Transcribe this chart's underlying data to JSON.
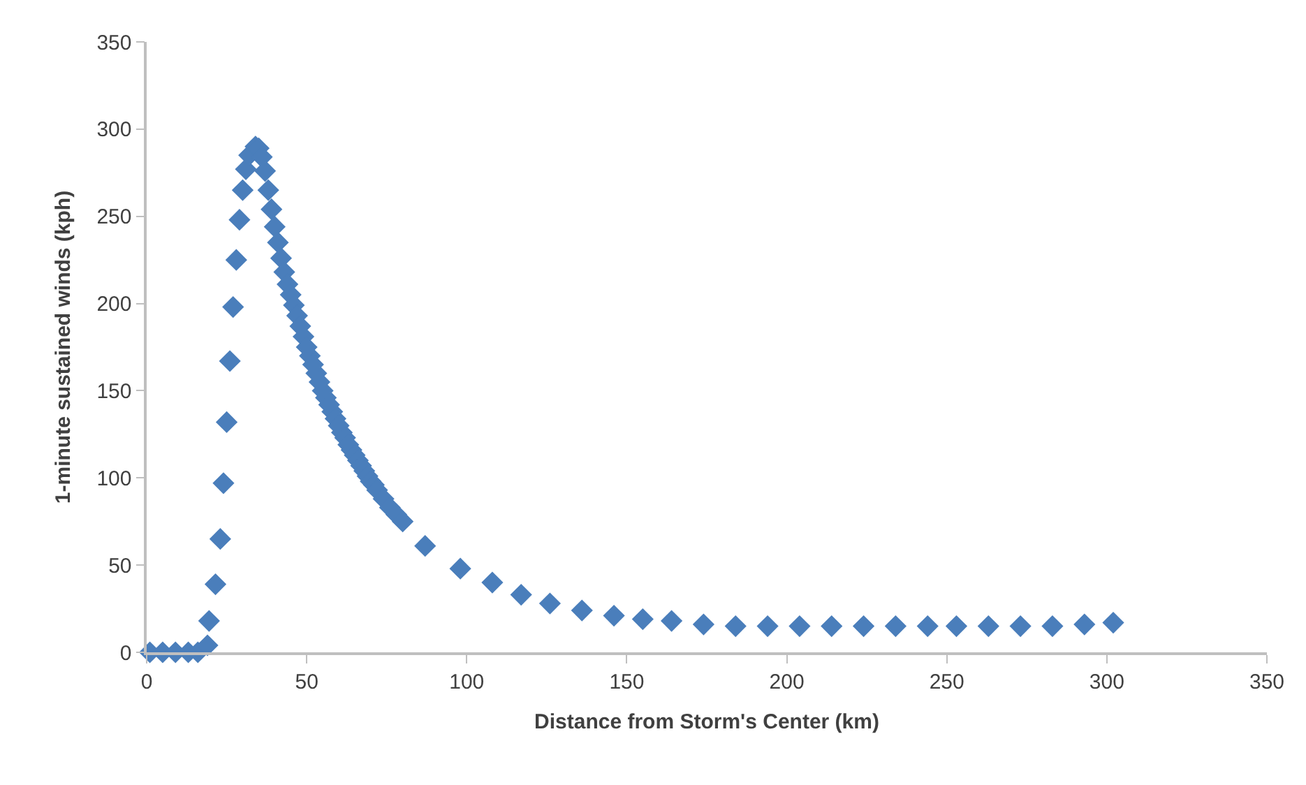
{
  "chart_data": {
    "type": "scatter",
    "xlabel": "Distance from Storm's Center (km)",
    "ylabel": "1-minute sustained winds (kph)",
    "marker": "diamond",
    "xlim": [
      0,
      350
    ],
    "xticks": [
      0,
      50,
      100,
      150,
      200,
      250,
      300,
      350
    ],
    "ylim": [
      0,
      350
    ],
    "yticks": [
      0,
      50,
      100,
      150,
      200,
      250,
      300,
      350
    ],
    "series": [
      {
        "color": "#4a7ebb",
        "x": [
          1,
          5,
          9,
          13,
          16,
          19,
          19.5,
          21.5,
          23,
          24,
          25,
          26,
          27,
          28,
          29,
          30,
          31,
          32,
          34,
          35,
          36,
          37,
          38,
          39,
          40,
          41,
          42,
          43,
          44,
          45,
          46,
          47,
          48,
          49,
          50,
          51,
          52,
          53,
          54,
          55,
          56,
          57,
          58,
          59,
          60,
          61,
          62,
          63,
          64,
          65,
          66,
          67,
          68,
          69,
          70,
          71,
          72,
          74,
          76,
          78,
          80,
          87,
          98,
          108,
          117,
          126,
          136,
          146,
          155,
          164,
          174,
          184,
          194,
          204,
          214,
          224,
          234,
          244,
          253,
          263,
          273,
          283,
          293,
          302
        ],
        "values": [
          0,
          0,
          0,
          0,
          0,
          4,
          18,
          39,
          65,
          97,
          132,
          167,
          198,
          225,
          248,
          265,
          277,
          285,
          290,
          289,
          284,
          276,
          265,
          254,
          244,
          235,
          226,
          218,
          211,
          205,
          199,
          193,
          187,
          181,
          175,
          170,
          165,
          160,
          155,
          150,
          146,
          142,
          138,
          134,
          130,
          126,
          123,
          119,
          116,
          113,
          110,
          107,
          104,
          101,
          98,
          96,
          93,
          88,
          83,
          79,
          75,
          61,
          48,
          40,
          33,
          28,
          24,
          21,
          19,
          18,
          16,
          15,
          15,
          15,
          15,
          15,
          15,
          15,
          15,
          15,
          15,
          15,
          16,
          17
        ]
      }
    ]
  }
}
